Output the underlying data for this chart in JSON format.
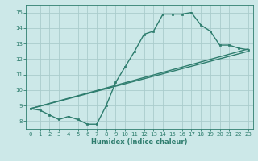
{
  "background_color": "#cce8e8",
  "grid_color": "#aacccc",
  "line_color": "#2e7d6e",
  "xlabel": "Humidex (Indice chaleur)",
  "xlim": [
    -0.5,
    23.5
  ],
  "ylim": [
    7.5,
    15.5
  ],
  "xticks": [
    0,
    1,
    2,
    3,
    4,
    5,
    6,
    7,
    8,
    9,
    10,
    11,
    12,
    13,
    14,
    15,
    16,
    17,
    18,
    19,
    20,
    21,
    22,
    23
  ],
  "yticks": [
    8,
    9,
    10,
    11,
    12,
    13,
    14,
    15
  ],
  "line1_x": [
    0,
    1,
    2,
    3,
    4,
    5,
    6,
    7,
    8,
    9,
    10,
    11,
    12,
    13,
    14,
    15,
    16,
    17,
    18,
    19,
    20,
    21,
    22,
    23
  ],
  "line1_y": [
    8.8,
    8.7,
    8.4,
    8.1,
    8.3,
    8.1,
    7.8,
    7.8,
    9.0,
    10.5,
    11.5,
    12.5,
    13.6,
    13.8,
    14.9,
    14.9,
    14.9,
    15.0,
    14.2,
    13.8,
    12.9,
    12.9,
    12.7,
    12.6
  ],
  "diag1_y_end": 12.5,
  "diag2_y_end": 12.65,
  "line_start_y": 8.8,
  "marker_size": 2.0,
  "line_width": 1.0,
  "tick_labelsize": 5.0,
  "xlabel_fontsize": 6.0
}
